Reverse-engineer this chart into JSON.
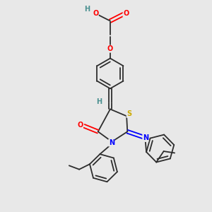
{
  "background_color": "#e8e8e8",
  "bond_color": "#2d2d2d",
  "atom_colors": {
    "O": "#ff0000",
    "N": "#0000ff",
    "S": "#ccaa00",
    "H_label": "#4a9090",
    "C": "#2d2d2d"
  },
  "figsize": [
    3.0,
    3.0
  ],
  "dpi": 100,
  "xlim": [
    0,
    10
  ],
  "ylim": [
    0,
    10
  ]
}
